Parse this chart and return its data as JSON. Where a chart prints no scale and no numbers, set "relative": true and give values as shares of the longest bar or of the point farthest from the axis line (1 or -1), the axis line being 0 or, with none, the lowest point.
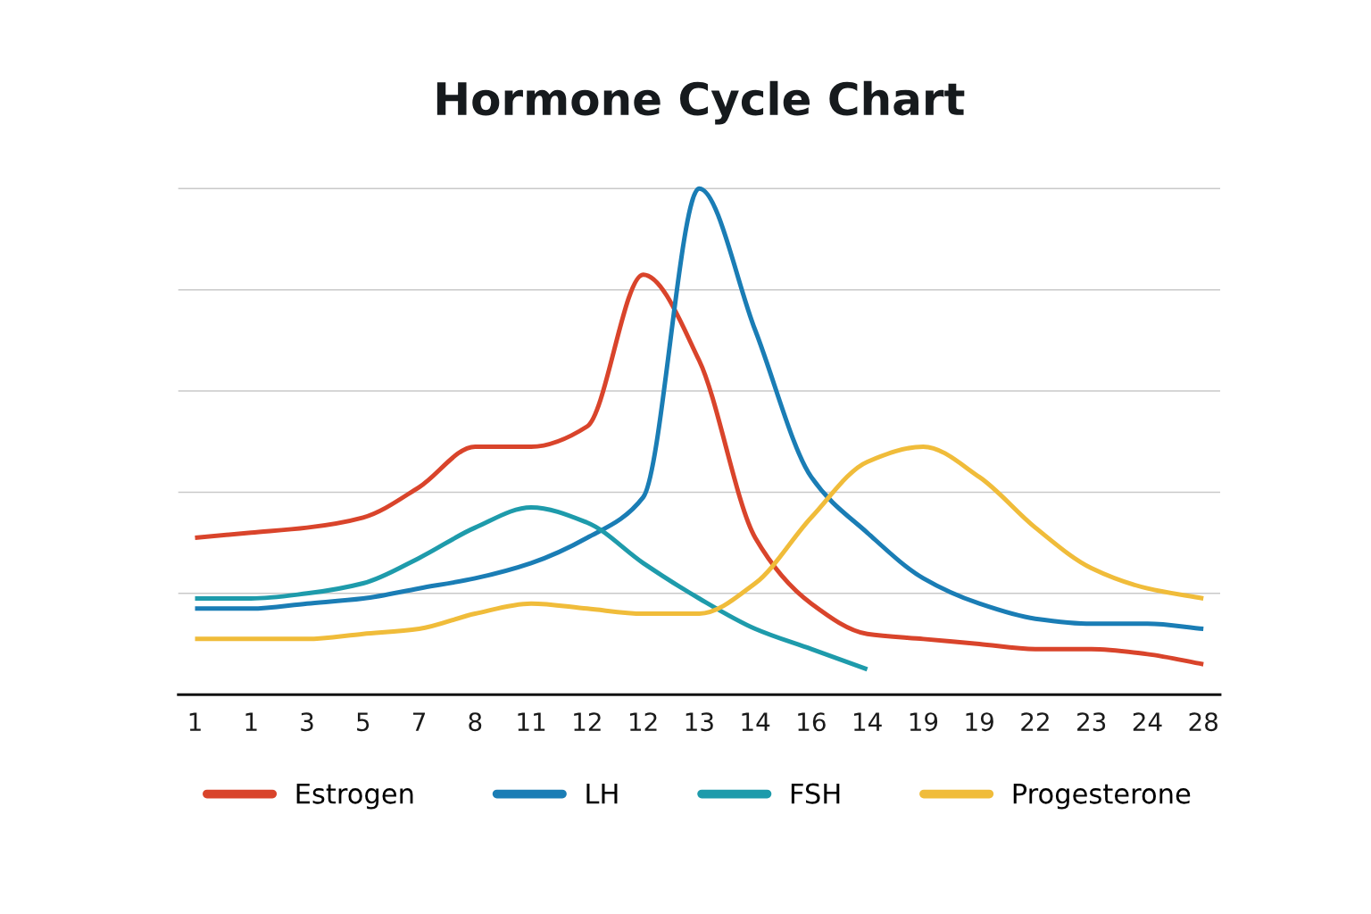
{
  "chart_data": {
    "type": "line",
    "title": "Hormone Cycle Chart",
    "relative": true,
    "categories": [
      "1",
      "1",
      "3",
      "5",
      "7",
      "8",
      "11",
      "12",
      "12",
      "13",
      "14",
      "16",
      "14",
      "19",
      "19",
      "22",
      "23",
      "24",
      "28"
    ],
    "series": [
      {
        "name": "Estrogen",
        "color": "#d9442b",
        "values": [
          0.31,
          0.32,
          0.33,
          0.35,
          0.41,
          0.49,
          0.49,
          0.53,
          0.83,
          0.66,
          0.31,
          0.18,
          0.12,
          0.11,
          0.1,
          0.09,
          0.09,
          0.08,
          0.06
        ]
      },
      {
        "name": "LH",
        "color": "#1a7db5",
        "values": [
          0.17,
          0.17,
          0.18,
          0.19,
          0.21,
          0.23,
          0.26,
          0.31,
          0.39,
          1.0,
          0.72,
          0.43,
          0.32,
          0.23,
          0.18,
          0.15,
          0.14,
          0.14,
          0.13
        ]
      },
      {
        "name": "FSH",
        "color": "#1e9bab",
        "values": [
          0.19,
          0.19,
          0.2,
          0.22,
          0.27,
          0.33,
          0.37,
          0.34,
          0.26,
          0.19,
          0.13,
          0.09,
          0.05,
          null,
          null,
          null,
          null,
          null,
          null
        ]
      },
      {
        "name": "Progesterone",
        "color": "#f0bc3a",
        "values": [
          0.11,
          0.11,
          0.11,
          0.12,
          0.13,
          0.16,
          0.18,
          0.17,
          0.16,
          0.16,
          0.22,
          0.35,
          0.46,
          0.49,
          0.43,
          0.33,
          0.25,
          0.21,
          0.19
        ]
      }
    ],
    "grid": "y",
    "legend": "bottom",
    "line_style": "solid"
  }
}
